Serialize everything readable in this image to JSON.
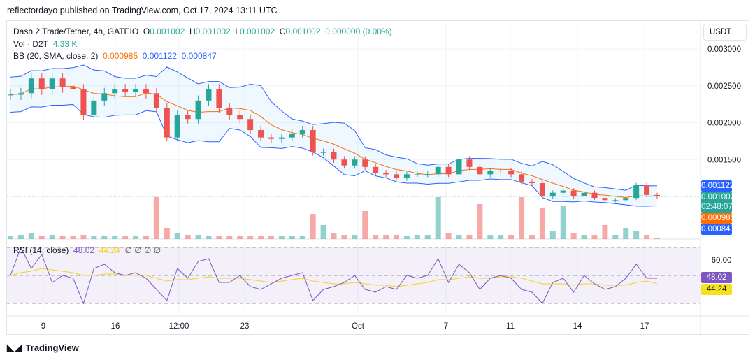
{
  "header": {
    "published": "reflectordayo published on TradingView.com, Oct 17, 2024 13:11 UTC"
  },
  "legend": {
    "symbol": "Dash 2 Trade/Tether, 4h, GATEIO",
    "o_label": "O",
    "o": "0.001002",
    "h_label": "H",
    "h": "0.001002",
    "l_label": "L",
    "l": "0.001002",
    "c_label": "C",
    "c": "0.001002",
    "change": "0.000000 (0.00%)",
    "vol_label": "Vol · D2T",
    "vol": "4.33 K",
    "bb_label": "BB (20, SMA, close, 2)",
    "bb_basis": "0.000985",
    "bb_upper": "0.001122",
    "bb_lower": "0.000847",
    "rsi_label": "RSI (14, close)",
    "rsi": "48.02",
    "rsi_ma": "44.24",
    "rsi_extra": "∅ ∅ ∅ ∅"
  },
  "price_scale": {
    "currency": "USDT",
    "ticks": [
      "0.003000",
      "0.002500",
      "0.002000",
      "0.001500"
    ],
    "tags": {
      "upper": "0.001122",
      "last": "0.001002",
      "countdown": "02:48:07",
      "basis": "0.000985",
      "lower": "0.000847"
    }
  },
  "rsi_scale": {
    "tick": "60.00",
    "rsi": "48.02",
    "ma": "44.24"
  },
  "footer": {
    "brand": "TradingView"
  },
  "colors": {
    "up": "#26a69a",
    "down": "#ef5350",
    "basis": "#ff6d00",
    "band": "#2962ff",
    "rsi": "#7e57c2",
    "rsi_ma": "#f7d21e"
  },
  "chart_data": {
    "type": "candlestick",
    "x_ticks": [
      "9",
      "16",
      "12:00",
      "23",
      "Oct",
      "7",
      "11",
      "14",
      "17"
    ],
    "y_ticks": [
      0.003,
      0.0025,
      0.002,
      0.0015
    ],
    "ylim": [
      0.00085,
      0.0031
    ],
    "closes": [
      0.00238,
      0.0024,
      0.0026,
      0.00245,
      0.0026,
      0.00248,
      0.00245,
      0.0021,
      0.0023,
      0.0024,
      0.00245,
      0.00242,
      0.00245,
      0.0024,
      0.0022,
      0.0018,
      0.0021,
      0.00205,
      0.0023,
      0.00245,
      0.0022,
      0.0021,
      0.00205,
      0.0019,
      0.0018,
      0.00178,
      0.0018,
      0.00185,
      0.0019,
      0.0016,
      0.0016,
      0.0015,
      0.00142,
      0.0015,
      0.0014,
      0.00132,
      0.0013,
      0.00125,
      0.0013,
      0.0013,
      0.0013,
      0.0014,
      0.0013,
      0.0015,
      0.0014,
      0.0013,
      0.00135,
      0.00135,
      0.0013,
      0.0012,
      0.00118,
      0.001,
      0.00105,
      0.00108,
      0.001,
      0.00105,
      0.00098,
      0.00095,
      0.00095,
      0.00098,
      0.00115,
      0.00102,
      0.001002
    ],
    "volumes": [
      2,
      3,
      4,
      2,
      3,
      2,
      2,
      3,
      2,
      2,
      2,
      2,
      2,
      2,
      30,
      8,
      4,
      3,
      3,
      2,
      2,
      2,
      2,
      2,
      2,
      2,
      2,
      2,
      2,
      18,
      10,
      4,
      3,
      3,
      20,
      3,
      3,
      3,
      2,
      3,
      3,
      30,
      4,
      3,
      3,
      25,
      3,
      3,
      3,
      30,
      3,
      22,
      6,
      24,
      4,
      3,
      3,
      10,
      3,
      8,
      6,
      3,
      1
    ],
    "rsi": [
      50,
      70,
      55,
      65,
      45,
      50,
      48,
      30,
      55,
      58,
      52,
      50,
      52,
      48,
      40,
      32,
      55,
      48,
      60,
      62,
      45,
      45,
      50,
      42,
      40,
      44,
      48,
      50,
      52,
      32,
      40,
      42,
      45,
      50,
      40,
      38,
      42,
      40,
      50,
      48,
      50,
      62,
      45,
      58,
      52,
      40,
      48,
      50,
      48,
      40,
      38,
      30,
      45,
      48,
      38,
      50,
      44,
      40,
      42,
      48,
      58,
      48,
      48.02
    ],
    "rsi_ma": [
      50,
      52,
      53,
      55,
      54,
      53,
      52,
      50,
      50,
      51,
      51,
      50,
      50,
      50,
      48,
      46,
      47,
      47,
      48,
      49,
      48,
      48,
      48,
      47,
      46,
      45,
      46,
      47,
      48,
      46,
      45,
      44,
      44,
      45,
      44,
      43,
      43,
      42,
      43,
      44,
      45,
      47,
      47,
      48,
      49,
      48,
      48,
      49,
      49,
      48,
      46,
      44,
      44,
      44,
      43,
      44,
      44,
      43,
      43,
      43,
      45,
      46,
      44.24
    ]
  }
}
